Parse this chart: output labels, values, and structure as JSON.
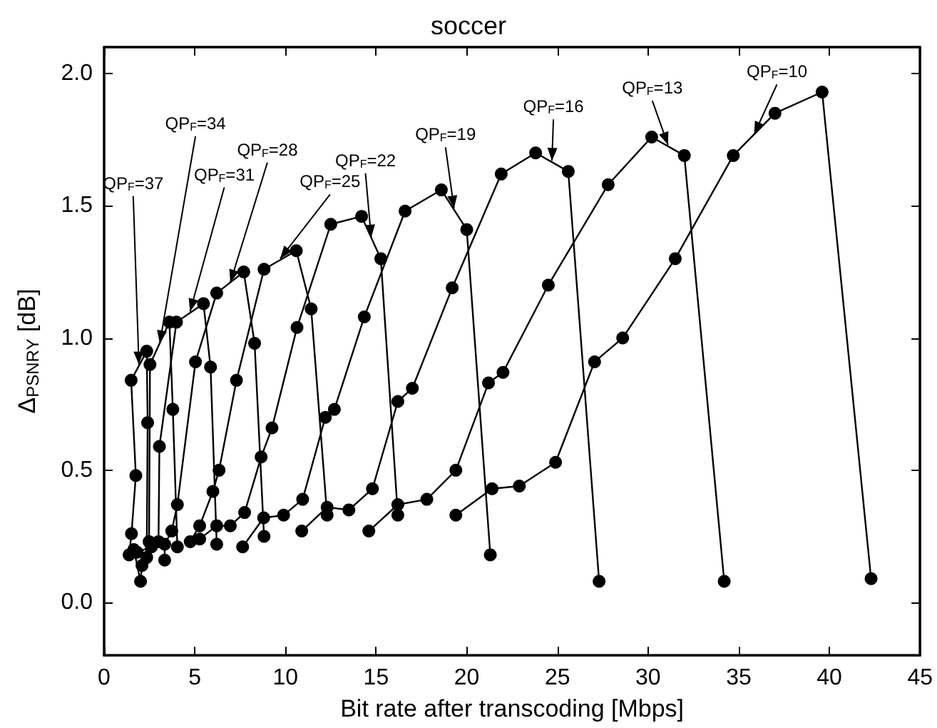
{
  "chart_data": {
    "type": "line",
    "title": "soccer",
    "xlabel": "Bit rate after transcoding [Mbps]",
    "ylabel": "Δ$_{PSNRY}$ [dB]",
    "xlim": [
      0,
      45
    ],
    "xticks": [
      0,
      5,
      10,
      15,
      20,
      25,
      30,
      35,
      40,
      45
    ],
    "ylim": [
      -0.2,
      2.1
    ],
    "yticks": [
      {
        "value": 0,
        "label": "0.0"
      },
      {
        "value": 0.5,
        "label": "0.5"
      },
      {
        "value": 1,
        "label": "1.0"
      },
      {
        "value": 1.5,
        "label": "1.5"
      },
      {
        "value": 2,
        "label": "2.0"
      }
    ],
    "grid": false,
    "marker": "circle",
    "line_style": "solid",
    "series": [
      {
        "color": "#000000",
        "x": [
          1.38,
          1.51,
          1.75,
          1.49,
          2.35,
          2.4,
          2.35
        ],
        "values": [
          0.18,
          0.26,
          0.48,
          0.84,
          0.95,
          0.68,
          0.17
        ]
      },
      {
        "color": "#000000",
        "x": [
          1.64,
          2.01,
          2.09,
          2.48,
          2.53,
          3.6,
          3.79,
          4.04
        ],
        "values": [
          0.2,
          0.08,
          0.14,
          0.23,
          0.9,
          1.06,
          0.73,
          0.21
        ]
      },
      {
        "color": "#000000",
        "x": [
          1.82,
          2.61,
          3.0,
          3.05,
          3.99,
          5.48,
          5.87,
          6.21
        ],
        "values": [
          0.19,
          0.21,
          0.23,
          0.59,
          1.06,
          1.13,
          0.89,
          0.22
        ]
      },
      {
        "color": "#000000",
        "x": [
          3.34,
          3.34,
          3.73,
          4.04,
          5.04,
          6.21,
          7.7,
          8.3,
          8.82
        ],
        "values": [
          0.16,
          0.22,
          0.27,
          0.37,
          0.91,
          1.17,
          1.25,
          0.98,
          0.25
        ]
      },
      {
        "color": "#000000",
        "x": [
          4.75,
          5.27,
          6.0,
          6.34,
          7.3,
          8.82,
          10.6,
          11.42,
          12.3
        ],
        "values": [
          0.23,
          0.29,
          0.42,
          0.5,
          0.84,
          1.26,
          1.33,
          1.11,
          0.33
        ]
      },
      {
        "color": "#000000",
        "x": [
          5.27,
          6.21,
          6.96,
          7.75,
          8.66,
          9.26,
          10.64,
          12.5,
          14.2,
          15.26,
          16.2
        ],
        "values": [
          0.24,
          0.29,
          0.29,
          0.34,
          0.55,
          0.66,
          1.04,
          1.43,
          1.46,
          1.3,
          0.33
        ]
      },
      {
        "color": "#000000",
        "x": [
          7.64,
          8.8,
          9.9,
          10.95,
          12.2,
          12.7,
          14.35,
          16.6,
          18.6,
          20.0,
          21.3
        ],
        "values": [
          0.21,
          0.32,
          0.33,
          0.39,
          0.7,
          0.73,
          1.08,
          1.48,
          1.56,
          1.41,
          0.18
        ]
      },
      {
        "color": "#000000",
        "x": [
          10.9,
          12.3,
          13.5,
          14.8,
          16.2,
          17.0,
          19.2,
          21.9,
          23.8,
          25.6,
          27.3
        ],
        "values": [
          0.27,
          0.36,
          0.35,
          0.43,
          0.76,
          0.81,
          1.19,
          1.62,
          1.7,
          1.63,
          0.08
        ]
      },
      {
        "color": "#000000",
        "x": [
          14.6,
          16.2,
          17.8,
          19.4,
          21.2,
          22.0,
          24.5,
          27.8,
          30.2,
          32.0,
          34.2
        ],
        "values": [
          0.27,
          0.37,
          0.39,
          0.5,
          0.83,
          0.87,
          1.2,
          1.58,
          1.76,
          1.69,
          0.08
        ]
      },
      {
        "color": "#000000",
        "x": [
          19.4,
          21.4,
          22.9,
          24.9,
          27.05,
          28.6,
          31.5,
          34.7,
          37.0,
          39.6,
          42.3
        ],
        "values": [
          0.33,
          0.43,
          0.44,
          0.53,
          0.91,
          1.0,
          1.3,
          1.69,
          1.85,
          1.93,
          0.09
        ]
      }
    ],
    "annotations": [
      {
        "text": "QP$_{F}$=37",
        "x": 1.92,
        "y": 0.9
      },
      {
        "text": "QP$_{F}$=34",
        "x": 3.07,
        "y": 0.98
      },
      {
        "text": "QP$_{F}$=31",
        "x": 4.74,
        "y": 1.1
      },
      {
        "text": "QP$_{F}$=28",
        "x": 6.96,
        "y": 1.21
      },
      {
        "text": "QP$_{F}$=25",
        "x": 9.71,
        "y": 1.3
      },
      {
        "text": "QP$_{F}$=22",
        "x": 14.73,
        "y": 1.38
      },
      {
        "text": "QP$_{F}$=19",
        "x": 19.3,
        "y": 1.49
      },
      {
        "text": "QP$_{F}$=16",
        "x": 24.7,
        "y": 1.67
      },
      {
        "text": "QP$_{F}$=13",
        "x": 31.1,
        "y": 1.73
      },
      {
        "text": "QP$_{F}$=10",
        "x": 35.85,
        "y": 1.77
      }
    ]
  }
}
